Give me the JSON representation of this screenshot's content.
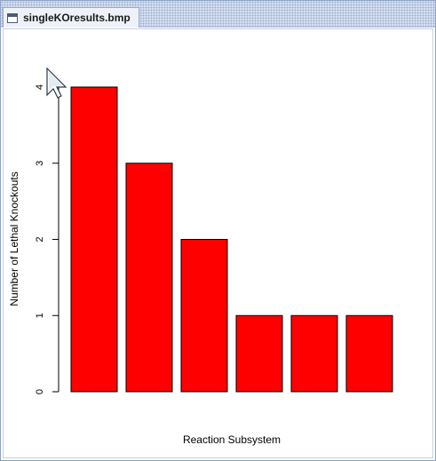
{
  "window": {
    "title": "singleKOresults.bmp"
  },
  "icons": {
    "window": "window-icon",
    "cursor": "mouse-pointer-icon"
  },
  "chart_data": {
    "type": "bar",
    "categories": [
      "",
      "",
      "",
      "",
      "",
      ""
    ],
    "values": [
      4,
      3,
      2,
      1,
      1,
      1
    ],
    "title": "",
    "xlabel": "Reaction Subsystem",
    "ylabel": "Number of Lethal Knockouts",
    "ylim": [
      0,
      4
    ],
    "yticks": [
      "0",
      "1",
      "2",
      "3",
      "4"
    ],
    "grid": false,
    "bar_color": "#ff0000",
    "edge_color": "#000000"
  }
}
